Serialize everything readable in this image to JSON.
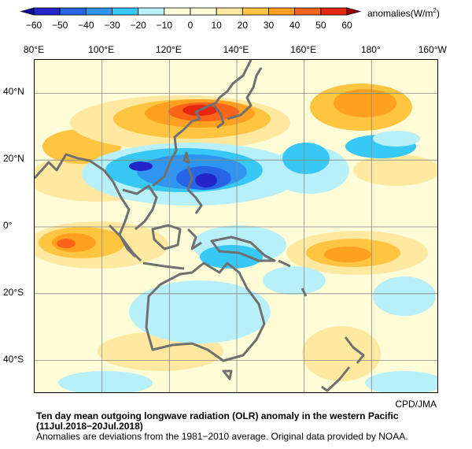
{
  "colorbar": {
    "ticks": [
      "−60",
      "−50",
      "−40",
      "−30",
      "−20",
      "−10",
      "0",
      "10",
      "20",
      "30",
      "40",
      "50",
      "60"
    ],
    "colors": [
      "#2424c8",
      "#2864e6",
      "#2e96f0",
      "#38c8f5",
      "#b8f0fa",
      "#fffcd8",
      "#fffcd8",
      "#ffe8a0",
      "#ffc440",
      "#ffa020",
      "#fa6418",
      "#e62810"
    ],
    "units_text": "anomalies(W/m",
    "units_sup": "2",
    "units_close": ")"
  },
  "map": {
    "lon_labels": [
      "80°E",
      "100°E",
      "120°E",
      "140°E",
      "160°E",
      "180°",
      "160°W"
    ],
    "lat_labels": [
      "40°N",
      "20°N",
      "0°",
      "20°S",
      "40°S"
    ],
    "grid_color": "#888888",
    "coast_color": "#707070"
  },
  "credit": "CPD/JMA",
  "caption": {
    "title_line1": "Ten day mean outgoing longwave radiation (OLR) anomaly in the western Pacific",
    "title_line2": "(11Jul.2018−20Jul.2018)",
    "note": "Anomalies are deviations from the 1981−2010 average. Original data provided by NOAA."
  }
}
